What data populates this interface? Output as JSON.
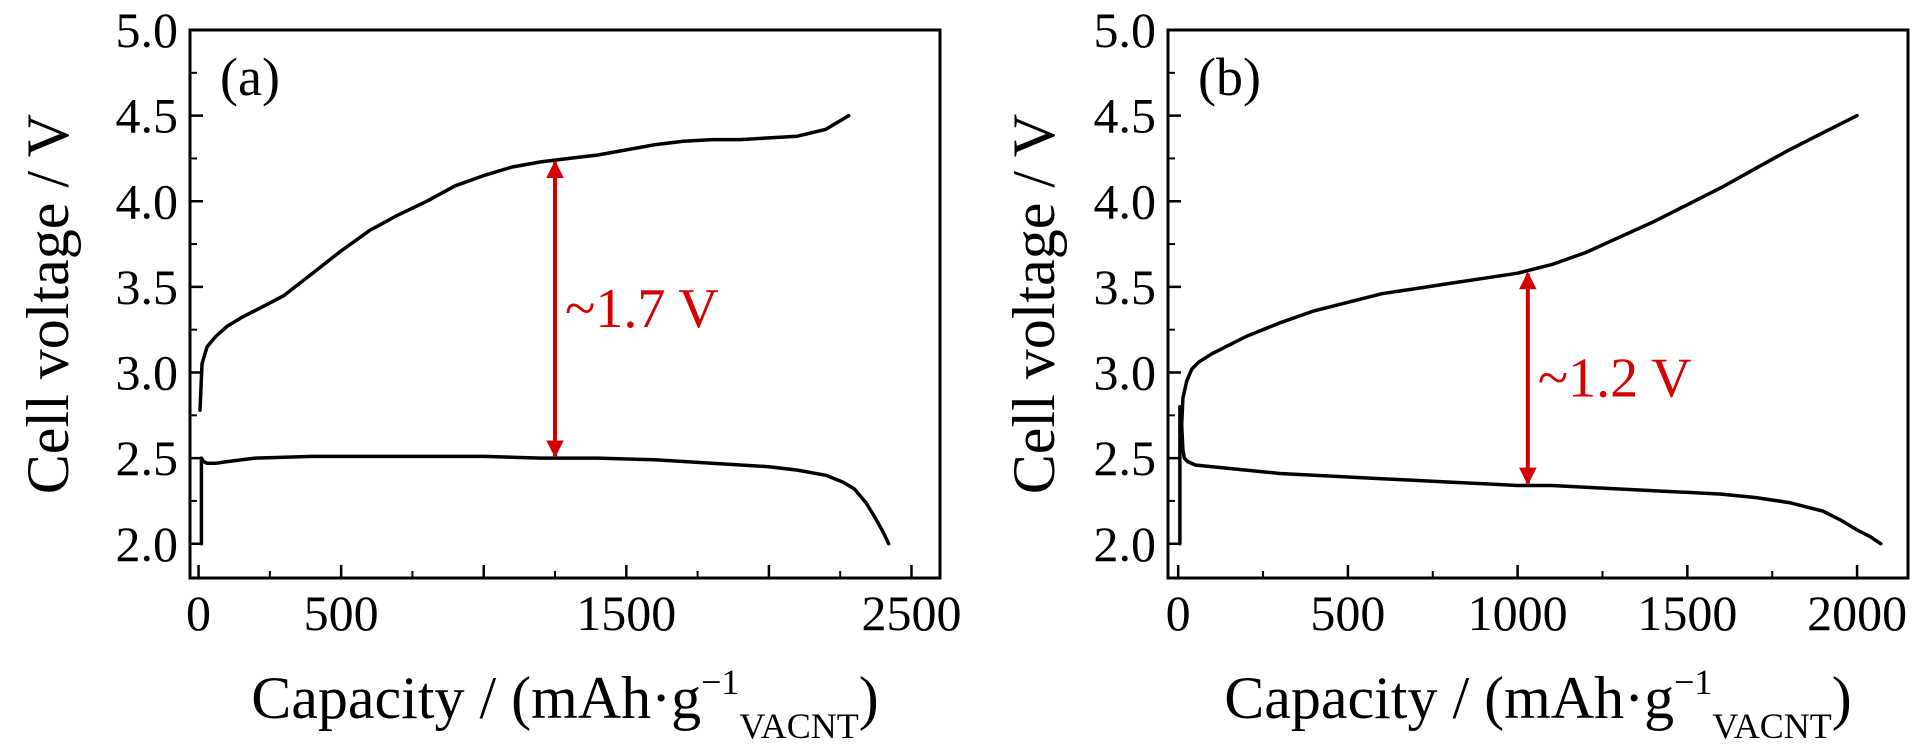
{
  "chart_data": [
    {
      "type": "line",
      "panel_label": "(a)",
      "ylabel": "Cell voltage / V",
      "xlabel": {
        "prefix": "Capacity / (mAh·g",
        "sup": "−1",
        "sub": "VACNT",
        "suffix": ")"
      },
      "xlim": [
        -30,
        2600
      ],
      "ylim": [
        1.8,
        5.0
      ],
      "xticks": [
        0,
        500,
        1500,
        2500
      ],
      "xtick_labels": [
        "0",
        "500",
        "1500",
        "2500"
      ],
      "xminor": [
        1000,
        2000
      ],
      "yticks": [
        2.0,
        2.5,
        3.0,
        3.5,
        4.0,
        4.5,
        5.0
      ],
      "ytick_labels": [
        "2.0",
        "2.5",
        "3.0",
        "3.5",
        "4.0",
        "4.5",
        "5.0"
      ],
      "grid": false,
      "series": [
        {
          "id": "charge",
          "x": [
            5,
            12,
            30,
            60,
            100,
            150,
            220,
            300,
            400,
            500,
            600,
            700,
            800,
            900,
            1000,
            1100,
            1200,
            1250,
            1300,
            1400,
            1500,
            1600,
            1700,
            1800,
            1900,
            2000,
            2100,
            2200,
            2280
          ],
          "y": [
            2.78,
            3.05,
            3.15,
            3.21,
            3.27,
            3.32,
            3.38,
            3.45,
            3.58,
            3.71,
            3.83,
            3.92,
            4.0,
            4.09,
            4.15,
            4.2,
            4.23,
            4.24,
            4.25,
            4.27,
            4.3,
            4.33,
            4.35,
            4.36,
            4.36,
            4.37,
            4.38,
            4.42,
            4.5
          ]
        },
        {
          "id": "discharge",
          "x": [
            10,
            10,
            18,
            30,
            60,
            100,
            200,
            400,
            600,
            800,
            1000,
            1200,
            1400,
            1600,
            1800,
            2000,
            2100,
            2200,
            2260,
            2300,
            2340,
            2370,
            2400,
            2420
          ],
          "y": [
            2.0,
            2.5,
            2.48,
            2.47,
            2.47,
            2.48,
            2.5,
            2.51,
            2.51,
            2.51,
            2.51,
            2.5,
            2.5,
            2.49,
            2.47,
            2.45,
            2.43,
            2.4,
            2.36,
            2.32,
            2.24,
            2.16,
            2.07,
            2.0
          ]
        }
      ],
      "annotation": {
        "text": "~1.7 V",
        "x": 1250,
        "y_top": 4.24,
        "y_bottom": 2.5,
        "color": "#d40000"
      }
    },
    {
      "type": "line",
      "panel_label": "(b)",
      "ylabel": "Cell voltage / V",
      "xlabel": {
        "prefix": "Capacity / (mAh·g",
        "sup": "−1",
        "sub": "VACNT",
        "suffix": ")"
      },
      "xlim": [
        -30,
        2150
      ],
      "ylim": [
        1.8,
        5.0
      ],
      "xticks": [
        0,
        500,
        1000,
        1500,
        2000
      ],
      "xtick_labels": [
        "0",
        "500",
        "1000",
        "1500",
        "2000"
      ],
      "xminor": [],
      "yticks": [
        2.0,
        2.5,
        3.0,
        3.5,
        4.0,
        4.5,
        5.0
      ],
      "ytick_labels": [
        "2.0",
        "2.5",
        "3.0",
        "3.5",
        "4.0",
        "4.5",
        "5.0"
      ],
      "grid": false,
      "series": [
        {
          "id": "charge",
          "x": [
            8,
            14,
            25,
            40,
            60,
            100,
            150,
            200,
            300,
            400,
            500,
            600,
            700,
            800,
            900,
            1000,
            1100,
            1200,
            1300,
            1400,
            1500,
            1600,
            1700,
            1800,
            1900,
            2000
          ],
          "y": [
            2.6,
            2.85,
            2.95,
            3.02,
            3.06,
            3.11,
            3.16,
            3.21,
            3.29,
            3.36,
            3.41,
            3.46,
            3.49,
            3.52,
            3.55,
            3.58,
            3.63,
            3.7,
            3.79,
            3.88,
            3.98,
            4.08,
            4.19,
            4.3,
            4.4,
            4.5
          ]
        },
        {
          "id": "discharge",
          "x": [
            5,
            5,
            10,
            14,
            18,
            28,
            50,
            100,
            200,
            300,
            400,
            500,
            600,
            700,
            800,
            900,
            1000,
            1100,
            1200,
            1300,
            1400,
            1500,
            1600,
            1700,
            1800,
            1900,
            1950,
            2000,
            2040,
            2070
          ],
          "y": [
            2.0,
            2.8,
            2.7,
            2.55,
            2.5,
            2.48,
            2.46,
            2.45,
            2.43,
            2.41,
            2.4,
            2.39,
            2.38,
            2.37,
            2.36,
            2.35,
            2.34,
            2.34,
            2.33,
            2.32,
            2.31,
            2.3,
            2.29,
            2.27,
            2.24,
            2.19,
            2.14,
            2.08,
            2.04,
            2.0
          ]
        }
      ],
      "annotation": {
        "text": "~1.2 V",
        "x": 1030,
        "y_top": 3.59,
        "y_bottom": 2.34,
        "color": "#d40000"
      }
    }
  ]
}
